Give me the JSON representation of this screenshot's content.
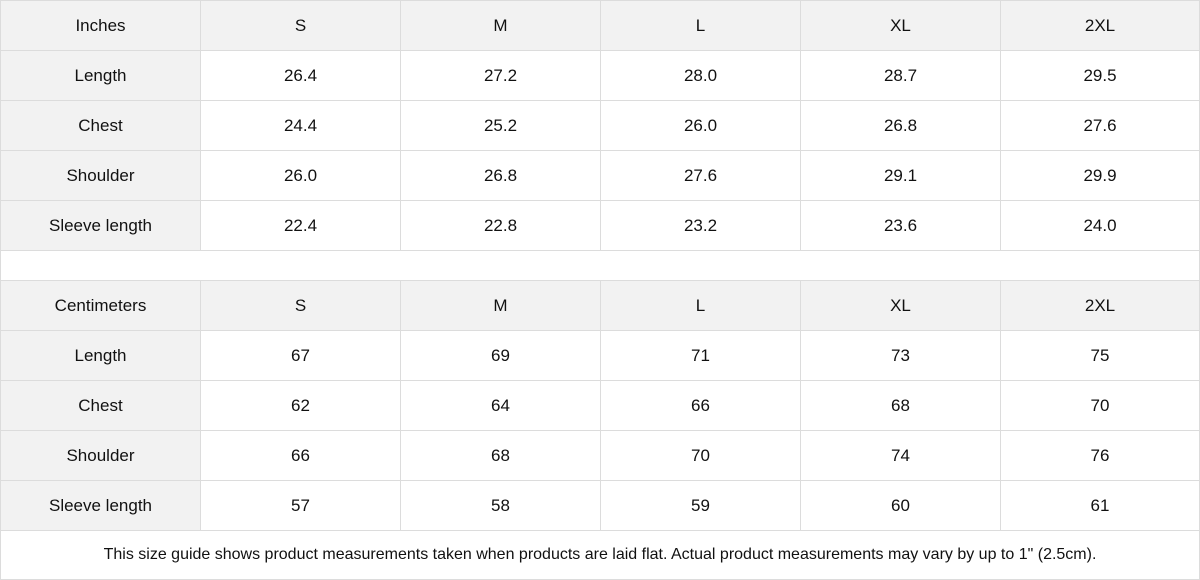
{
  "sizes": [
    "S",
    "M",
    "L",
    "XL",
    "2XL"
  ],
  "inches": {
    "unit_label": "Inches",
    "rows": [
      {
        "label": "Length",
        "values": [
          "26.4",
          "27.2",
          "28.0",
          "28.7",
          "29.5"
        ]
      },
      {
        "label": "Chest",
        "values": [
          "24.4",
          "25.2",
          "26.0",
          "26.8",
          "27.6"
        ]
      },
      {
        "label": "Shoulder",
        "values": [
          "26.0",
          "26.8",
          "27.6",
          "29.1",
          "29.9"
        ]
      },
      {
        "label": "Sleeve length",
        "values": [
          "22.4",
          "22.8",
          "23.2",
          "23.6",
          "24.0"
        ]
      }
    ]
  },
  "centimeters": {
    "unit_label": "Centimeters",
    "rows": [
      {
        "label": "Length",
        "values": [
          "67",
          "69",
          "71",
          "73",
          "75"
        ]
      },
      {
        "label": "Chest",
        "values": [
          "62",
          "64",
          "66",
          "68",
          "70"
        ]
      },
      {
        "label": "Shoulder",
        "values": [
          "66",
          "68",
          "70",
          "74",
          "76"
        ]
      },
      {
        "label": "Sleeve length",
        "values": [
          "57",
          "58",
          "59",
          "60",
          "61"
        ]
      }
    ]
  },
  "footnote": "This size guide shows product measurements taken when products are laid flat.  Actual product measurements may vary by up to 1\" (2.5cm)."
}
